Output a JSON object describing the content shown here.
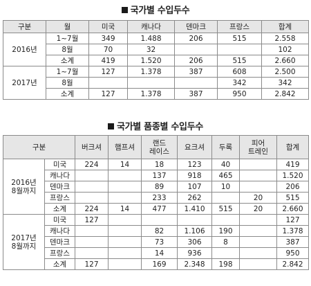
{
  "table1": {
    "title": "국가별 수입두수",
    "headers": [
      "구분",
      "월",
      "미국",
      "캐나다",
      "덴마크",
      "프랑스",
      "합계"
    ],
    "groups": [
      {
        "year": "2016년",
        "rows": [
          [
            "1~7월",
            "349",
            "1.488",
            "206",
            "515",
            "2.558"
          ],
          [
            "8월",
            "70",
            "32",
            "",
            "",
            "102"
          ],
          [
            "소계",
            "419",
            "1.520",
            "206",
            "515",
            "2.660"
          ]
        ]
      },
      {
        "year": "2017년",
        "rows": [
          [
            "1~7월",
            "127",
            "1.378",
            "387",
            "608",
            "2.500"
          ],
          [
            "8월",
            "",
            "",
            "",
            "342",
            "342"
          ],
          [
            "소계",
            "127",
            "1.378",
            "387",
            "950",
            "2.842"
          ]
        ]
      }
    ]
  },
  "table2": {
    "title": "국가별 품종별 수입두수",
    "headers": [
      "구분",
      "",
      "버크셔",
      "햄프셔",
      "랜드\n레이스",
      "요크셔",
      "두록",
      "피어\n트레인",
      "합계"
    ],
    "groups": [
      {
        "period": "2016년\n8월까지",
        "rows": [
          [
            "미국",
            "224",
            "14",
            "18",
            "123",
            "40",
            "",
            "419"
          ],
          [
            "캐나다",
            "",
            "",
            "137",
            "918",
            "465",
            "",
            "1.520"
          ],
          [
            "덴마크",
            "",
            "",
            "89",
            "107",
            "10",
            "",
            "206"
          ],
          [
            "프랑스",
            "",
            "",
            "233",
            "262",
            "",
            "20",
            "515"
          ],
          [
            "소계",
            "224",
            "14",
            "477",
            "1.410",
            "515",
            "20",
            "2.660"
          ]
        ]
      },
      {
        "period": "2017년\n8월까지",
        "rows": [
          [
            "미국",
            "127",
            "",
            "",
            "",
            "",
            "",
            "127"
          ],
          [
            "캐나다",
            "",
            "",
            "82",
            "1.106",
            "190",
            "",
            "1.378"
          ],
          [
            "덴마크",
            "",
            "",
            "73",
            "306",
            "8",
            "",
            "387"
          ],
          [
            "프랑스",
            "",
            "",
            "14",
            "936",
            "",
            "",
            "950"
          ],
          [
            "소계",
            "127",
            "",
            "169",
            "2.348",
            "198",
            "",
            "2.842"
          ]
        ]
      }
    ]
  }
}
